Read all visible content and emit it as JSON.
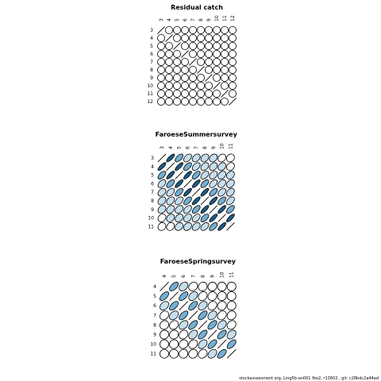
{
  "footer": "stockassessment.org, Ling5b-an001 fbo2, r13602 , git: c28bdc2a44ad",
  "colors": {
    "empty": "#ffffff",
    "light": "#c6dfef",
    "medium": "#74afd3",
    "dark": "#1e5c89",
    "stroke": "#000000"
  },
  "chart_data": [
    {
      "type": "heatmap",
      "title": "Residual catch",
      "ages": [
        "3",
        "4",
        "5",
        "6",
        "7",
        "8",
        "9",
        "10",
        "11",
        "12"
      ],
      "ellipse": "circle",
      "correlation": [
        [
          1,
          0,
          0,
          0,
          0,
          0,
          0,
          0,
          0,
          0
        ],
        [
          0,
          1,
          0,
          0,
          0,
          0,
          0,
          0,
          0,
          0
        ],
        [
          0,
          0,
          1,
          0,
          0,
          0,
          0,
          0,
          0,
          0
        ],
        [
          0,
          0,
          0,
          1,
          0,
          0,
          0,
          0,
          0,
          0
        ],
        [
          0,
          0,
          0,
          0,
          1,
          0,
          0,
          0,
          0,
          0
        ],
        [
          0,
          0,
          0,
          0,
          0,
          1,
          0,
          0,
          0,
          0
        ],
        [
          0,
          0,
          0,
          0,
          0,
          0,
          1,
          0,
          0,
          0
        ],
        [
          0,
          0,
          0,
          0,
          0,
          0,
          0,
          1,
          0,
          0
        ],
        [
          0,
          0,
          0,
          0,
          0,
          0,
          0,
          0,
          1,
          0
        ],
        [
          0,
          0,
          0,
          0,
          0,
          0,
          0,
          0,
          0,
          1
        ]
      ]
    },
    {
      "type": "heatmap",
      "title": "FaroeseSummersurvey",
      "ages": [
        "3",
        "4",
        "5",
        "6",
        "7",
        "8",
        "9",
        "10",
        "11"
      ],
      "correlation": [
        [
          1,
          0.8,
          0.6,
          0.45,
          0.35,
          0.3,
          0.25,
          0.2,
          0.15
        ],
        [
          0.8,
          1,
          0.8,
          0.6,
          0.45,
          0.35,
          0.3,
          0.25,
          0.2
        ],
        [
          0.6,
          0.8,
          1,
          0.8,
          0.6,
          0.45,
          0.35,
          0.3,
          0.25
        ],
        [
          0.45,
          0.6,
          0.8,
          1,
          0.8,
          0.6,
          0.45,
          0.35,
          0.3
        ],
        [
          0.35,
          0.45,
          0.6,
          0.8,
          1,
          0.8,
          0.6,
          0.45,
          0.35
        ],
        [
          0.3,
          0.35,
          0.45,
          0.6,
          0.8,
          1,
          0.8,
          0.6,
          0.45
        ],
        [
          0.25,
          0.3,
          0.35,
          0.45,
          0.6,
          0.8,
          1,
          0.8,
          0.6
        ],
        [
          0.2,
          0.25,
          0.3,
          0.35,
          0.45,
          0.6,
          0.8,
          1,
          0.8
        ],
        [
          0.15,
          0.2,
          0.25,
          0.3,
          0.35,
          0.45,
          0.6,
          0.8,
          1
        ]
      ]
    },
    {
      "type": "heatmap",
      "title": "FaroeseSpringsurvey",
      "ages": [
        "4",
        "5",
        "6",
        "7",
        "8",
        "9",
        "10",
        "11"
      ],
      "correlation": [
        [
          1,
          0.6,
          0.35,
          0.2,
          0.1,
          0.05,
          0.0,
          0.0
        ],
        [
          0.6,
          1,
          0.6,
          0.35,
          0.2,
          0.1,
          0.05,
          0.0
        ],
        [
          0.35,
          0.6,
          1,
          0.6,
          0.35,
          0.2,
          0.1,
          0.05
        ],
        [
          0.2,
          0.35,
          0.6,
          1,
          0.6,
          0.35,
          0.2,
          0.1
        ],
        [
          0.1,
          0.2,
          0.35,
          0.6,
          1,
          0.6,
          0.35,
          0.2
        ],
        [
          0.05,
          0.1,
          0.2,
          0.35,
          0.6,
          1,
          0.6,
          0.35
        ],
        [
          0.0,
          0.05,
          0.1,
          0.2,
          0.35,
          0.6,
          1,
          0.6
        ],
        [
          0.0,
          0.0,
          0.05,
          0.1,
          0.2,
          0.35,
          0.6,
          1
        ]
      ]
    }
  ]
}
